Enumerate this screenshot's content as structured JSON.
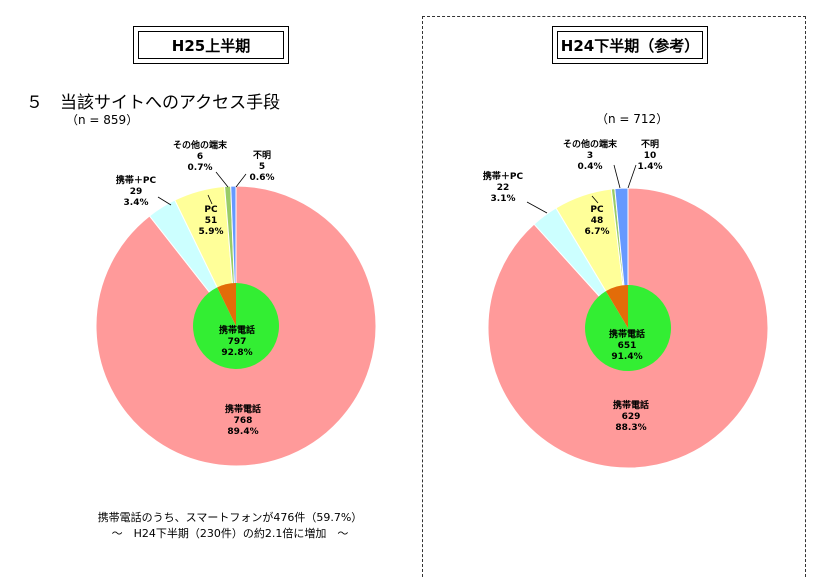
{
  "left": {
    "header": "H25上半期",
    "section_title": "５　当該サイトへのアクセス手段",
    "n_label": "（n = 859）",
    "note_line1": "携帯電話のうち、スマートフォンが476件（59.7%）",
    "note_line2": "～　H24下半期（230件）の約2.1倍に増加　～"
  },
  "right": {
    "header": "H24下半期（参考）",
    "n_label": "（n = 712）"
  },
  "colors": {
    "mobile": "#ff9a9a",
    "mobile_pc": "#ccffff",
    "pc": "#ffff99",
    "other": "#99cc66",
    "unknown": "#6699ff",
    "inner_mobile": "#33ee33",
    "inner_rest": "#e36c09"
  },
  "chart_data": [
    {
      "type": "pie",
      "title": "H25上半期",
      "total": 859,
      "slices": [
        {
          "name": "携帯電話",
          "count": 768,
          "percent": 89.4,
          "count_label": "768",
          "percent_label": "89.4%"
        },
        {
          "name": "携帯＋PC",
          "count": 29,
          "percent": 3.4,
          "count_label": "29",
          "percent_label": "3.4%"
        },
        {
          "name": "PC",
          "count": 51,
          "percent": 5.9,
          "count_label": "51",
          "percent_label": "5.9%"
        },
        {
          "name": "その他の端末",
          "count": 6,
          "percent": 0.7,
          "count_label": "6",
          "percent_label": "0.7%"
        },
        {
          "name": "不明",
          "count": 5,
          "percent": 0.6,
          "count_label": "5",
          "percent_label": "0.6%"
        }
      ],
      "inner": {
        "name": "携帯電話",
        "count": 797,
        "percent": 92.8,
        "count_label": "797",
        "percent_label": "92.8%"
      }
    },
    {
      "type": "pie",
      "title": "H24下半期（参考）",
      "total": 712,
      "slices": [
        {
          "name": "携帯電話",
          "count": 629,
          "percent": 88.3,
          "count_label": "629",
          "percent_label": "88.3%"
        },
        {
          "name": "携帯＋PC",
          "count": 22,
          "percent": 3.1,
          "count_label": "22",
          "percent_label": "3.1%"
        },
        {
          "name": "PC",
          "count": 48,
          "percent": 6.7,
          "count_label": "48",
          "percent_label": "6.7%"
        },
        {
          "name": "その他の端末",
          "count": 3,
          "percent": 0.4,
          "count_label": "3",
          "percent_label": "0.4%"
        },
        {
          "name": "不明",
          "count": 10,
          "percent": 1.4,
          "count_label": "10",
          "percent_label": "1.4%"
        }
      ],
      "inner": {
        "name": "携帯電話",
        "count": 651,
        "percent": 91.4,
        "count_label": "651",
        "percent_label": "91.4%"
      }
    }
  ]
}
